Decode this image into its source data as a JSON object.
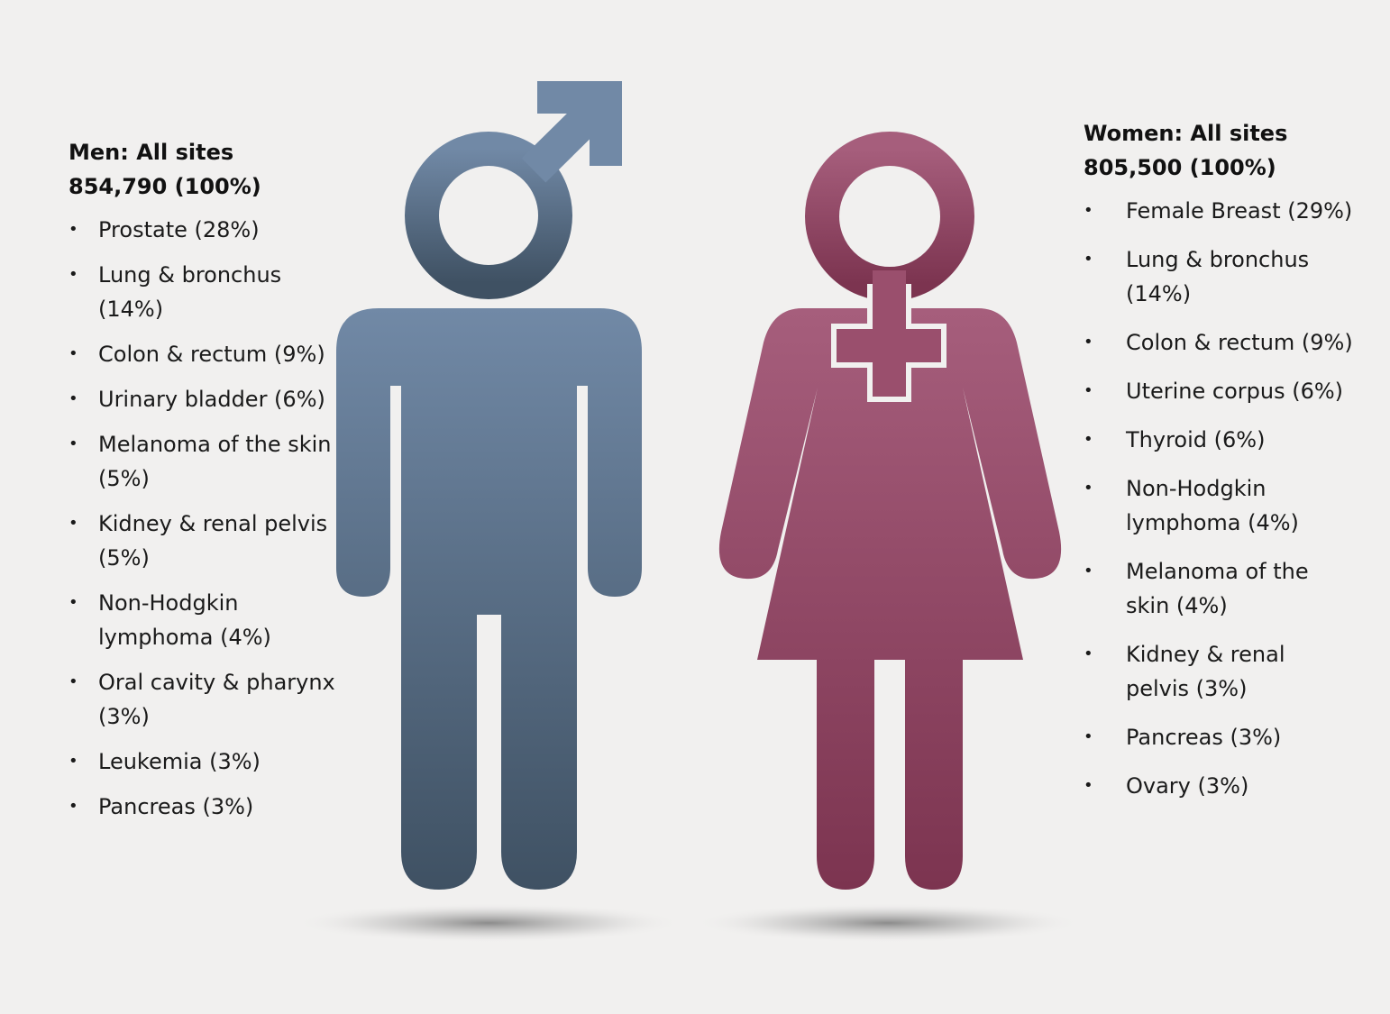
{
  "men": {
    "title": "Men: All sites 854,790 (100%)",
    "bullet": "•",
    "items": [
      "Prostate (28%)",
      "Lung & bronchus (14%)",
      "Colon & rectum (9%)",
      "Urinary bladder (6%)",
      "Melanoma of the skin (5%)",
      "Kidney & renal pelvis (5%)",
      "Non-Hodgkin lymphoma (4%)",
      "Oral cavity & pharynx (3%)",
      "Leukemia (3%)",
      "Pancreas (3%)"
    ],
    "figure_color_top": "#7189a6",
    "figure_color_bottom": "#3f5163",
    "icon": "male-person-icon"
  },
  "women": {
    "title": "Women: All sites 805,500 (100%)",
    "bullet": "•",
    "items": [
      "Female Breast (29%)",
      "Lung & bronchus (14%)",
      "Colon & rectum (9%)",
      "Uterine corpus (6%)",
      "Thyroid (6%)",
      "Non-Hodgkin lymphoma (4%)",
      "Melanoma of the skin (4%)",
      "Kidney & renal pelvis (3%)",
      "Pancreas (3%)",
      "Ovary (3%)"
    ],
    "figure_color_top": "#a65e7c",
    "figure_color_bottom": "#7c3450",
    "icon": "female-person-icon"
  },
  "background_color": "#f1f0ef"
}
